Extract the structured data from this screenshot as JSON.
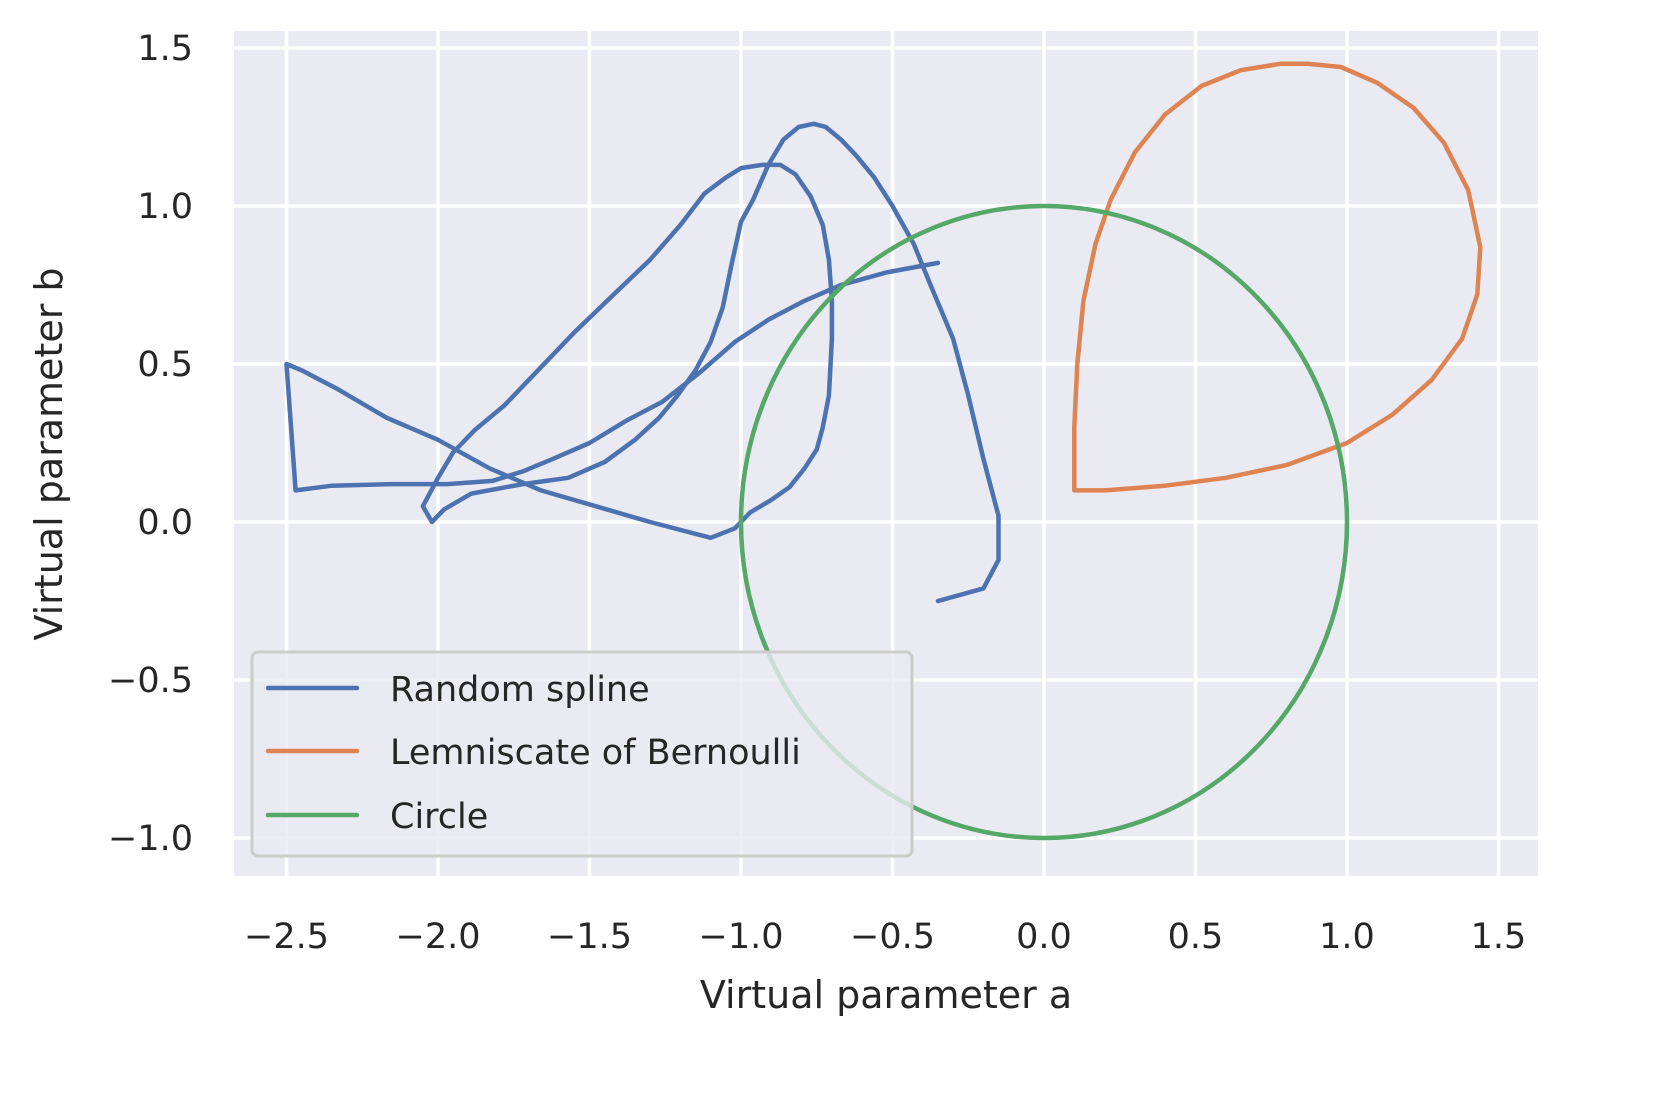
{
  "chart_data": {
    "type": "line",
    "title": "",
    "xlabel": "Virtual parameter a",
    "ylabel": "Virtual parameter b",
    "xlim": [
      -2.7,
      1.62
    ],
    "ylim": [
      -1.12,
      1.57
    ],
    "grid": true,
    "background": "#EAEAF2",
    "legend_position": "lower left",
    "x_ticks": [
      "−2.5",
      "−2.0",
      "−1.5",
      "−1.0",
      "−0.5",
      "0.0",
      "0.5",
      "1.0",
      "1.5"
    ],
    "x_tick_values": [
      -2.5,
      -2.0,
      -1.5,
      -1.0,
      -0.5,
      0.0,
      0.5,
      1.0,
      1.5
    ],
    "y_ticks": [
      "−1.0",
      "−0.5",
      "0.0",
      "0.5",
      "1.0",
      "1.5"
    ],
    "y_tick_values": [
      -1.0,
      -0.5,
      0.0,
      0.5,
      1.0,
      1.5
    ],
    "series": [
      {
        "name": "Random spline",
        "color": "#4C72B0",
        "x": [
          -0.35,
          -0.2,
          -0.15,
          -0.15,
          -0.2,
          -0.25,
          -0.3,
          -0.37,
          -0.43,
          -0.5,
          -0.56,
          -0.62,
          -0.67,
          -0.72,
          -0.76,
          -0.81,
          -0.86,
          -0.91,
          -0.96,
          -1.0,
          -1.03,
          -1.06,
          -1.1,
          -1.15,
          -1.21,
          -1.27,
          -1.35,
          -1.45,
          -1.57,
          -1.72,
          -1.89,
          -1.98,
          -2.02,
          -2.05,
          -2.0,
          -1.95,
          -1.88,
          -1.78,
          -1.67,
          -1.55,
          -1.42,
          -1.3,
          -1.2,
          -1.12,
          -1.05,
          -1.0,
          -0.93,
          -0.87,
          -0.82,
          -0.77,
          -0.73,
          -0.71,
          -0.7,
          -0.7,
          -0.71,
          -0.73,
          -0.75,
          -0.79,
          -0.84,
          -0.9,
          -0.97,
          -1.02,
          -1.1,
          -1.3,
          -1.48,
          -1.66,
          -1.83,
          -2.0,
          -2.17,
          -2.33,
          -2.45,
          -2.5,
          -2.47,
          -2.35,
          -2.15,
          -1.97,
          -1.82,
          -1.72,
          -1.62,
          -1.5,
          -1.38,
          -1.26,
          -1.14,
          -1.02,
          -0.91,
          -0.79,
          -0.67,
          -0.52,
          -0.35
        ],
        "y": [
          -0.25,
          -0.21,
          -0.12,
          0.02,
          0.2,
          0.4,
          0.58,
          0.74,
          0.88,
          1.0,
          1.09,
          1.16,
          1.21,
          1.25,
          1.26,
          1.25,
          1.21,
          1.13,
          1.02,
          0.95,
          0.82,
          0.68,
          0.57,
          0.48,
          0.4,
          0.33,
          0.26,
          0.19,
          0.14,
          0.12,
          0.09,
          0.04,
          0.0,
          0.05,
          0.14,
          0.22,
          0.29,
          0.37,
          0.48,
          0.6,
          0.72,
          0.83,
          0.94,
          1.04,
          1.09,
          1.12,
          1.13,
          1.13,
          1.1,
          1.03,
          0.94,
          0.83,
          0.7,
          0.58,
          0.4,
          0.3,
          0.23,
          0.17,
          0.11,
          0.07,
          0.03,
          -0.02,
          -0.05,
          0.0,
          0.05,
          0.1,
          0.17,
          0.26,
          0.33,
          0.42,
          0.48,
          0.5,
          0.1,
          0.115,
          0.12,
          0.12,
          0.13,
          0.16,
          0.2,
          0.25,
          0.32,
          0.38,
          0.47,
          0.57,
          0.64,
          0.7,
          0.75,
          0.79,
          0.82
        ]
      },
      {
        "name": "Lemniscate of Bernoulli",
        "color": "#DD8452",
        "shape": "teardrop loop from (0.1, 0.1) up to peak (0.87, 1.45), rightmost (1.44, 0.87), back to (0.1, 0.1)",
        "x": [
          0.1,
          0.1,
          0.11,
          0.13,
          0.17,
          0.22,
          0.3,
          0.4,
          0.52,
          0.65,
          0.78,
          0.87,
          0.98,
          1.1,
          1.22,
          1.32,
          1.4,
          1.44,
          1.43,
          1.38,
          1.28,
          1.15,
          1.0,
          0.8,
          0.6,
          0.4,
          0.2,
          0.1
        ],
        "y": [
          0.1,
          0.3,
          0.5,
          0.7,
          0.88,
          1.02,
          1.17,
          1.29,
          1.38,
          1.43,
          1.45,
          1.45,
          1.44,
          1.39,
          1.31,
          1.2,
          1.05,
          0.87,
          0.72,
          0.58,
          0.45,
          0.34,
          0.25,
          0.18,
          0.14,
          0.115,
          0.1,
          0.1
        ]
      },
      {
        "name": "Circle",
        "color": "#55A868",
        "center": [
          0.0,
          0.0
        ],
        "radius": 1.0
      }
    ]
  },
  "legend": {
    "items": [
      {
        "label": "Random spline",
        "color": "#4C72B0"
      },
      {
        "label": "Lemniscate of Bernoulli",
        "color": "#DD8452"
      },
      {
        "label": "Circle",
        "color": "#55A868"
      }
    ]
  }
}
